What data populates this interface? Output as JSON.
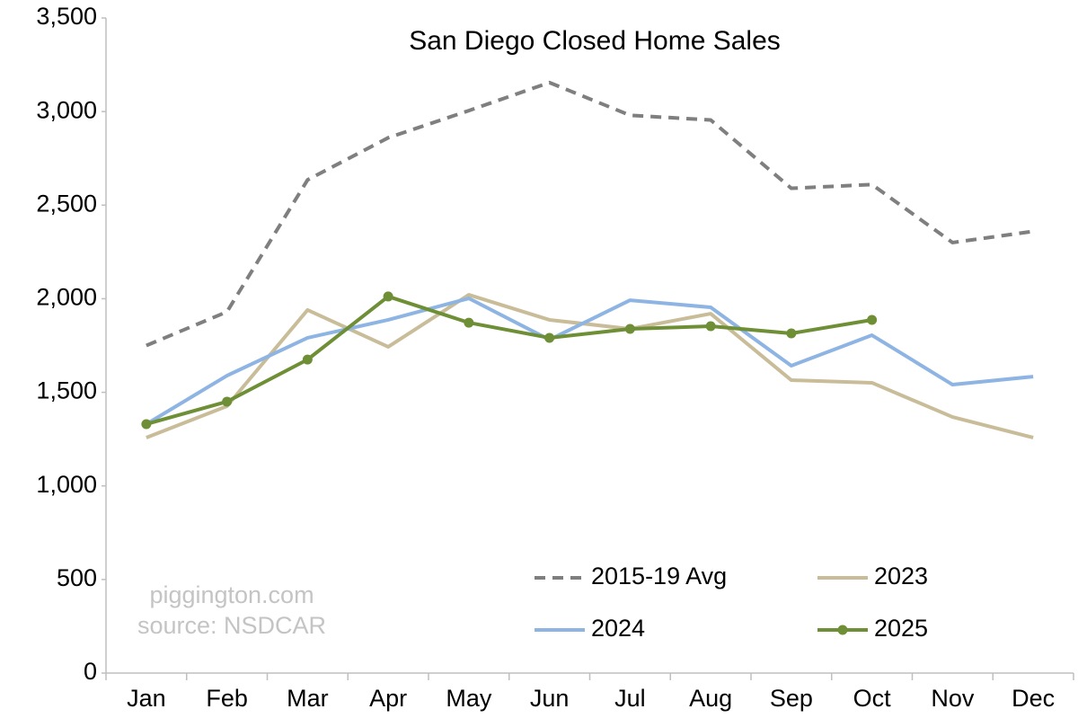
{
  "chart_data": {
    "type": "line",
    "title": "San Diego Closed Home Sales",
    "annotations": [
      "piggington.com",
      "source: NSDCAR"
    ],
    "categories": [
      "Jan",
      "Feb",
      "Mar",
      "Apr",
      "May",
      "Jun",
      "Jul",
      "Aug",
      "Sep",
      "Oct",
      "Nov",
      "Dec"
    ],
    "series": [
      {
        "name": "2015-19 Avg",
        "color": "#7f7f7f",
        "dashed": true,
        "markers": false,
        "values": [
          1750,
          1930,
          2635,
          2860,
          3005,
          3155,
          2980,
          2955,
          2590,
          2610,
          2300,
          2360
        ]
      },
      {
        "name": "2023",
        "color": "#c9bc98",
        "dashed": false,
        "markers": false,
        "values": [
          1258,
          1426,
          1940,
          1743,
          2021,
          1887,
          1839,
          1920,
          1565,
          1551,
          1368,
          1258
        ]
      },
      {
        "name": "2024",
        "color": "#8db4e2",
        "dashed": false,
        "markers": false,
        "values": [
          1330,
          1589,
          1791,
          1887,
          2002,
          1781,
          1992,
          1954,
          1642,
          1805,
          1541,
          1584
        ]
      },
      {
        "name": "2025",
        "color": "#6e8f35",
        "dashed": false,
        "markers": true,
        "values": [
          1330,
          1450,
          1675,
          2012,
          1872,
          1791,
          1839,
          1853,
          1815,
          1887,
          null,
          null
        ]
      }
    ],
    "ylim": [
      0,
      3500
    ],
    "yticks": [
      0,
      500,
      {
        "value": 1000,
        "label": "1,000"
      },
      {
        "value": 1500,
        "label": "1,500"
      },
      {
        "value": 2000,
        "label": "2,000"
      },
      {
        "value": 2500,
        "label": "2,500"
      },
      {
        "value": 3000,
        "label": "3,000"
      },
      {
        "value": 3500,
        "label": "3,500"
      }
    ],
    "grid": false,
    "legend": "lower right"
  }
}
